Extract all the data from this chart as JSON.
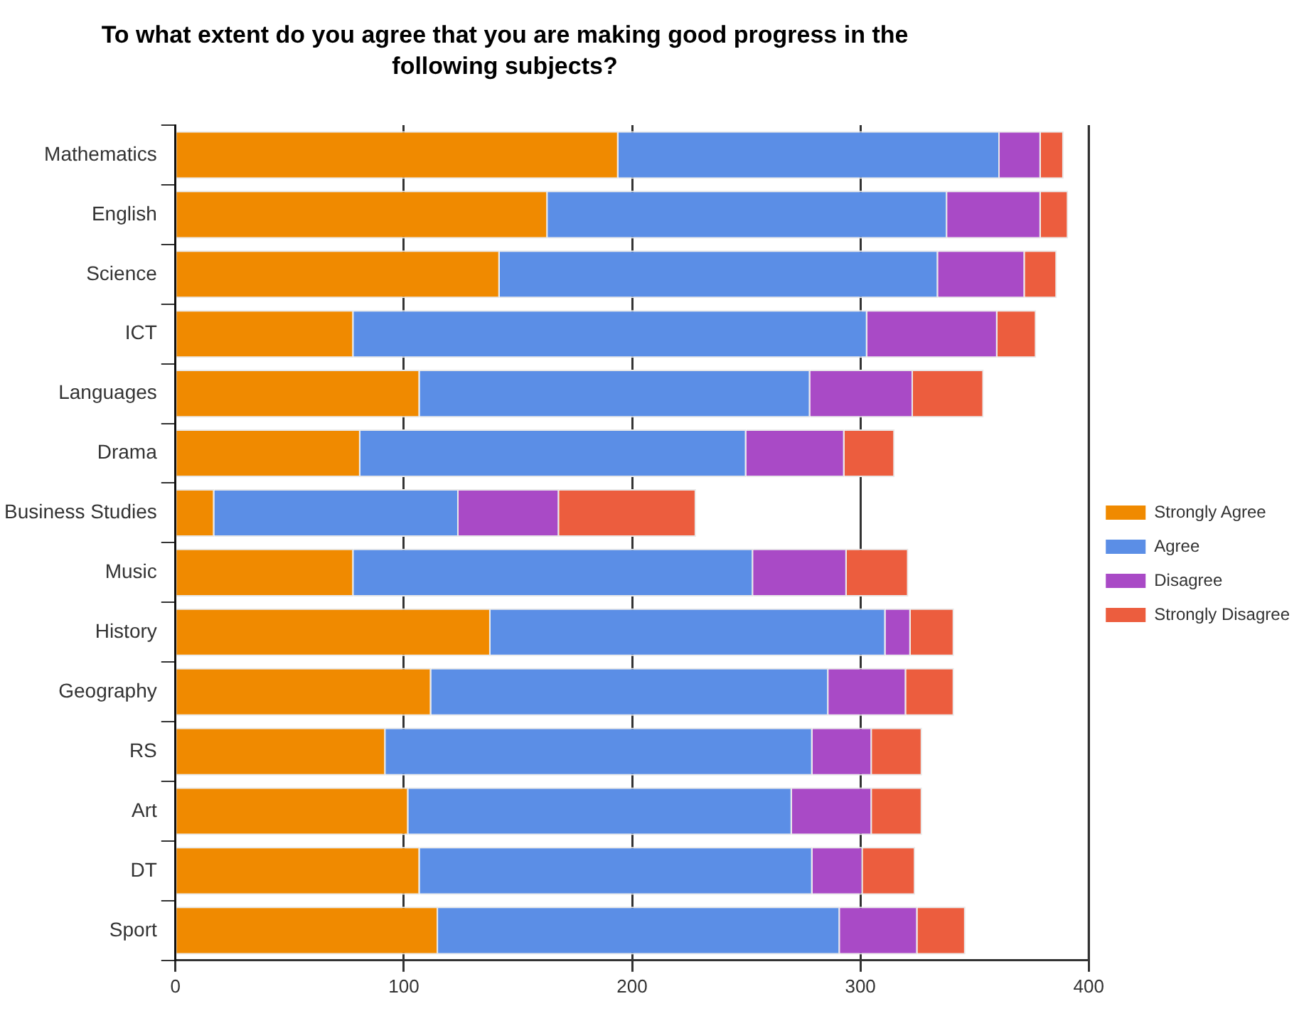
{
  "chart_data": {
    "type": "bar",
    "orientation": "horizontal",
    "stacked": true,
    "title": "To what extent do you agree that you are making good progress in the following subjects?",
    "categories": [
      "Mathematics",
      "English",
      "Science",
      "ICT",
      "Languages",
      "Drama",
      "Business Studies",
      "Music",
      "History",
      "Geography",
      "RS",
      "Art",
      "DT",
      "Sport"
    ],
    "series": [
      {
        "name": "Strongly Agree",
        "color": "#f08a00",
        "values": [
          194,
          163,
          142,
          78,
          107,
          81,
          17,
          78,
          138,
          112,
          92,
          102,
          107,
          115
        ]
      },
      {
        "name": "Agree",
        "color": "#5b8ee6",
        "values": [
          167,
          175,
          192,
          225,
          171,
          169,
          107,
          175,
          173,
          174,
          187,
          168,
          172,
          176
        ]
      },
      {
        "name": "Disagree",
        "color": "#a94ac6",
        "values": [
          18,
          41,
          38,
          57,
          45,
          43,
          44,
          41,
          11,
          34,
          26,
          35,
          22,
          34
        ]
      },
      {
        "name": "Strongly Disagree",
        "color": "#ec5d3e",
        "values": [
          10,
          12,
          14,
          17,
          31,
          22,
          60,
          27,
          19,
          21,
          22,
          22,
          23,
          21
        ]
      }
    ],
    "xlim": [
      0,
      400
    ],
    "xticks": [
      0,
      100,
      200,
      300,
      400
    ],
    "grid": "x",
    "legend": "right"
  }
}
